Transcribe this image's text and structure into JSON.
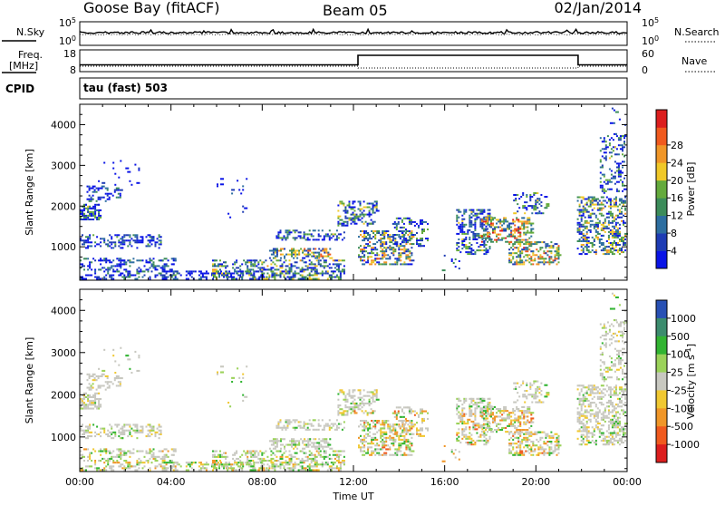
{
  "header": {
    "station": "Goose Bay (fitACF)",
    "beam": "Beam 05",
    "date": "02/Jan/2014"
  },
  "noise_panel": {
    "left_label": "N.Sky",
    "right_label": "N.Search",
    "left_ticks": [
      "10^5",
      "10^0"
    ],
    "right_ticks": [
      "10^5",
      "10^0"
    ]
  },
  "freq_panel": {
    "label_line1": "Freq.",
    "label_line2": "[MHz]",
    "right_label": "Nave",
    "left_ticks": [
      "18",
      "8"
    ],
    "right_ticks": [
      "60",
      "0"
    ],
    "freq_steps": [
      {
        "t": 0.0,
        "mhz": 11.4
      },
      {
        "t": 12.2,
        "mhz": 11.4
      },
      {
        "t": 12.2,
        "mhz": 16.2
      },
      {
        "t": 21.85,
        "mhz": 16.2
      },
      {
        "t": 21.85,
        "mhz": 11.4
      },
      {
        "t": 24.0,
        "mhz": 11.4
      }
    ]
  },
  "cpid": {
    "label": "CPID",
    "value": "tau (fast) 503"
  },
  "chart_data": [
    {
      "type": "heatmap",
      "title": "",
      "xlabel": "Time UT",
      "ylabel": "Slant Range [km]",
      "xlim": [
        0,
        24
      ],
      "ylim": [
        180,
        4500
      ],
      "yticks": [
        1000,
        2000,
        3000,
        4000
      ],
      "colorbar": {
        "label": "Power [dB]",
        "ticks": [
          "4",
          "8",
          "12",
          "16",
          "20",
          "24",
          "28"
        ],
        "colors": [
          "#0a14e6",
          "#1e3cb4",
          "#2d6ea0",
          "#3c8c5a",
          "#64aa3c",
          "#f0c828",
          "#f09628",
          "#f05a1e",
          "#dc1e1e"
        ]
      },
      "regions": [
        {
          "t0": 0.0,
          "t1": 4.2,
          "r0": 190,
          "r1": 700,
          "d": 0.32,
          "v": 0.25
        },
        {
          "t0": 0.0,
          "t1": 3.6,
          "r0": 950,
          "r1": 1300,
          "d": 0.35,
          "v": 0.3
        },
        {
          "t0": 0.0,
          "t1": 0.8,
          "r0": 1650,
          "r1": 2050,
          "d": 0.55,
          "v": 0.35
        },
        {
          "t0": 0.3,
          "t1": 1.8,
          "r0": 2100,
          "r1": 2500,
          "d": 0.35,
          "v": 0.2
        },
        {
          "t0": 0.8,
          "t1": 2.6,
          "r0": 2500,
          "r1": 3100,
          "d": 0.05,
          "v": 0.1
        },
        {
          "t0": 4.0,
          "t1": 8.5,
          "r0": 190,
          "r1": 380,
          "d": 0.35,
          "v": 0.3
        },
        {
          "t0": 5.8,
          "t1": 11.6,
          "r0": 190,
          "r1": 650,
          "d": 0.4,
          "v": 0.45
        },
        {
          "t0": 8.3,
          "t1": 11.0,
          "r0": 700,
          "r1": 950,
          "d": 0.45,
          "v": 0.6
        },
        {
          "t0": 8.6,
          "t1": 11.6,
          "r0": 1150,
          "r1": 1400,
          "d": 0.35,
          "v": 0.35
        },
        {
          "t0": 6.0,
          "t1": 7.5,
          "r0": 1700,
          "r1": 2700,
          "d": 0.05,
          "v": 0.1
        },
        {
          "t0": 11.3,
          "t1": 13.0,
          "r0": 1500,
          "r1": 2100,
          "d": 0.3,
          "v": 0.4
        },
        {
          "t0": 12.2,
          "t1": 14.6,
          "r0": 550,
          "r1": 1400,
          "d": 0.42,
          "v": 0.55
        },
        {
          "t0": 13.7,
          "t1": 15.3,
          "r0": 1000,
          "r1": 1700,
          "d": 0.3,
          "v": 0.35
        },
        {
          "t0": 15.8,
          "t1": 16.6,
          "r0": 400,
          "r1": 800,
          "d": 0.08,
          "v": 0.3
        },
        {
          "t0": 16.5,
          "t1": 18.0,
          "r0": 800,
          "r1": 1900,
          "d": 0.35,
          "v": 0.4
        },
        {
          "t0": 17.6,
          "t1": 19.8,
          "r0": 1100,
          "r1": 1700,
          "d": 0.45,
          "v": 0.7
        },
        {
          "t0": 18.8,
          "t1": 21.0,
          "r0": 550,
          "r1": 1100,
          "d": 0.42,
          "v": 0.65
        },
        {
          "t0": 19.0,
          "t1": 20.5,
          "r0": 1800,
          "r1": 2300,
          "d": 0.25,
          "v": 0.4
        },
        {
          "t0": 21.8,
          "t1": 23.9,
          "r0": 800,
          "r1": 2200,
          "d": 0.42,
          "v": 0.5
        },
        {
          "t0": 22.8,
          "t1": 23.9,
          "r0": 2300,
          "r1": 3700,
          "d": 0.25,
          "v": 0.35
        },
        {
          "t0": 23.0,
          "t1": 23.9,
          "r0": 3700,
          "r1": 4400,
          "d": 0.08,
          "v": 0.2
        }
      ]
    },
    {
      "type": "heatmap",
      "title": "",
      "xlabel": "Time UT",
      "ylabel": "Slant Range [km]",
      "xlim": [
        0,
        24
      ],
      "ylim": [
        180,
        4500
      ],
      "yticks": [
        1000,
        2000,
        3000,
        4000
      ],
      "xticks": [
        "00:00",
        "04:00",
        "08:00",
        "12:00",
        "16:00",
        "20:00",
        "00:00"
      ],
      "colorbar": {
        "label": "Velocity [m s^-1]",
        "ticks": [
          "1000",
          "500",
          "100",
          "25",
          "-25",
          "-100",
          "-500",
          "-1000"
        ],
        "colors": [
          "#2850b4",
          "#3c8c6e",
          "#32b432",
          "#9bd25a",
          "#c8c8c0",
          "#f0c832",
          "#f09628",
          "#f05a1e",
          "#dc1e1e"
        ]
      }
    }
  ]
}
